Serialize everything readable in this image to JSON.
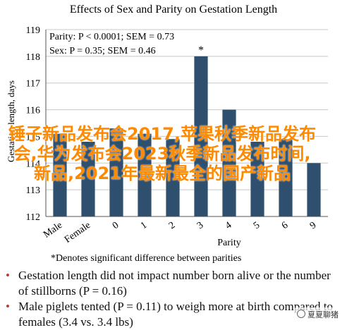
{
  "chart_data": {
    "type": "bar",
    "title": "Effects of Sex and Parity on Gestation Length",
    "ylabel": "Gestation length, days",
    "xlabel": "Parity",
    "ylim": [
      112,
      119
    ],
    "yticks": [
      112,
      113,
      114,
      115,
      116,
      117,
      118,
      119
    ],
    "categories": [
      "Male",
      "Female",
      "0",
      "1",
      "2",
      "3",
      "4",
      "5",
      "6",
      "9"
    ],
    "values": [
      115.1,
      114.8,
      115.3,
      115.1,
      114.9,
      118.0,
      116.0,
      114.8,
      114.9,
      114.0
    ],
    "bar_color": "#2e4f6e",
    "grid": true,
    "annotations": [
      "Parity: P < 0.0001; SEM = 0.73",
      "Sex: P = 0.35; SEM = 0.46"
    ],
    "star_label": "*",
    "star_category": "3"
  },
  "footnote": "*Denotes significant difference between parities",
  "bullets": [
    "Gestation length did not impact number born alive or the number of stillborns (P = 0.16)",
    "Male piglets tented (P = 0.11) to weigh more at birth compared to females (3.4 vs. 3.4 lbs)"
  ],
  "overlay_text": "锤子新品发布会2017,苹果秋季新品发布会,华为发布会2023秋季新品发布时间,新品,2021年最新最全的国产新品",
  "watermark": "夏夏聊猪"
}
